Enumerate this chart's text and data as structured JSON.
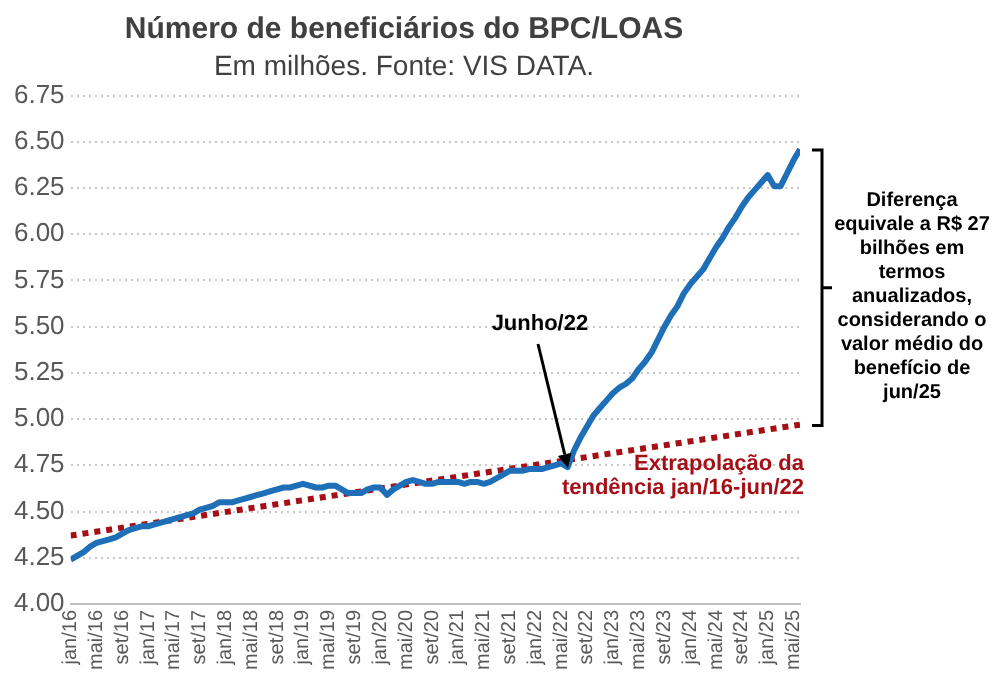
{
  "chart_data": {
    "type": "line",
    "title": "Número de beneficiários do BPC/LOAS",
    "subtitle": "Em milhões. Fonte: VIS DATA.",
    "x": [
      "2016-01",
      "2016-02",
      "2016-03",
      "2016-04",
      "2016-05",
      "2016-06",
      "2016-07",
      "2016-08",
      "2016-09",
      "2016-10",
      "2016-11",
      "2016-12",
      "2017-01",
      "2017-02",
      "2017-03",
      "2017-04",
      "2017-05",
      "2017-06",
      "2017-07",
      "2017-08",
      "2017-09",
      "2017-10",
      "2017-11",
      "2017-12",
      "2018-01",
      "2018-02",
      "2018-03",
      "2018-04",
      "2018-05",
      "2018-06",
      "2018-07",
      "2018-08",
      "2018-09",
      "2018-10",
      "2018-11",
      "2018-12",
      "2019-01",
      "2019-02",
      "2019-03",
      "2019-04",
      "2019-05",
      "2019-06",
      "2019-07",
      "2019-08",
      "2019-09",
      "2019-10",
      "2019-11",
      "2019-12",
      "2020-01",
      "2020-02",
      "2020-03",
      "2020-04",
      "2020-05",
      "2020-06",
      "2020-07",
      "2020-08",
      "2020-09",
      "2020-10",
      "2020-11",
      "2020-12",
      "2021-01",
      "2021-02",
      "2021-03",
      "2021-04",
      "2021-05",
      "2021-06",
      "2021-07",
      "2021-08",
      "2021-09",
      "2021-10",
      "2021-11",
      "2021-12",
      "2022-01",
      "2022-02",
      "2022-03",
      "2022-04",
      "2022-05",
      "2022-06",
      "2022-07",
      "2022-08",
      "2022-09",
      "2022-10",
      "2022-11",
      "2022-12",
      "2023-01",
      "2023-02",
      "2023-03",
      "2023-04",
      "2023-05",
      "2023-06",
      "2023-07",
      "2023-08",
      "2023-09",
      "2023-10",
      "2023-11",
      "2023-12",
      "2024-01",
      "2024-02",
      "2024-03",
      "2024-04",
      "2024-05",
      "2024-06",
      "2024-07",
      "2024-08",
      "2024-09",
      "2024-10",
      "2024-11",
      "2024-12",
      "2025-01",
      "2025-02",
      "2025-03",
      "2025-04",
      "2025-05",
      "2025-06"
    ],
    "series": [
      {
        "color": "#1f6fb8",
        "line_style": "solid",
        "values": [
          4.24,
          4.26,
          4.28,
          4.31,
          4.33,
          4.34,
          4.35,
          4.36,
          4.38,
          4.4,
          4.41,
          4.42,
          4.42,
          4.43,
          4.44,
          4.45,
          4.46,
          4.47,
          4.48,
          4.49,
          4.51,
          4.52,
          4.53,
          4.55,
          4.55,
          4.55,
          4.56,
          4.57,
          4.58,
          4.59,
          4.6,
          4.61,
          4.62,
          4.63,
          4.63,
          4.64,
          4.65,
          4.64,
          4.63,
          4.63,
          4.64,
          4.64,
          4.62,
          4.6,
          4.6,
          4.6,
          4.62,
          4.63,
          4.63,
          4.59,
          4.62,
          4.64,
          4.66,
          4.67,
          4.66,
          4.65,
          4.65,
          4.66,
          4.66,
          4.66,
          4.66,
          4.65,
          4.66,
          4.66,
          4.65,
          4.66,
          4.68,
          4.7,
          4.72,
          4.72,
          4.72,
          4.73,
          4.73,
          4.73,
          4.74,
          4.75,
          4.76,
          4.74,
          4.83,
          4.9,
          4.96,
          5.02,
          5.06,
          5.1,
          5.14,
          5.17,
          5.19,
          5.22,
          5.27,
          5.31,
          5.36,
          5.43,
          5.5,
          5.56,
          5.61,
          5.68,
          5.73,
          5.77,
          5.81,
          5.87,
          5.93,
          5.98,
          6.04,
          6.09,
          6.15,
          6.2,
          6.24,
          6.28,
          6.32,
          6.26,
          6.26,
          6.33,
          6.4,
          6.46
        ]
      },
      {
        "type": "line",
        "color": "#a50f15",
        "line_style": "dotted",
        "x": [
          "2016-01",
          "2025-06"
        ],
        "values": [
          4.37,
          4.97
        ]
      }
    ],
    "xlim": [
      "2016-01",
      "2025-06"
    ],
    "xticks": [
      {
        "value": "2016-01",
        "label": "jan/16"
      },
      {
        "value": "2016-05",
        "label": "mai/16"
      },
      {
        "value": "2016-09",
        "label": "set/16"
      },
      {
        "value": "2017-01",
        "label": "jan/17"
      },
      {
        "value": "2017-05",
        "label": "mai/17"
      },
      {
        "value": "2017-09",
        "label": "set/17"
      },
      {
        "value": "2018-01",
        "label": "jan/18"
      },
      {
        "value": "2018-05",
        "label": "mai/18"
      },
      {
        "value": "2018-09",
        "label": "set/18"
      },
      {
        "value": "2019-01",
        "label": "jan/19"
      },
      {
        "value": "2019-05",
        "label": "mai/19"
      },
      {
        "value": "2019-09",
        "label": "set/19"
      },
      {
        "value": "2020-01",
        "label": "jan/20"
      },
      {
        "value": "2020-05",
        "label": "mai/20"
      },
      {
        "value": "2020-09",
        "label": "set/20"
      },
      {
        "value": "2021-01",
        "label": "jan/21"
      },
      {
        "value": "2021-05",
        "label": "mai/21"
      },
      {
        "value": "2021-09",
        "label": "set/21"
      },
      {
        "value": "2022-01",
        "label": "jan/22"
      },
      {
        "value": "2022-05",
        "label": "mai/22"
      },
      {
        "value": "2022-09",
        "label": "set/22"
      },
      {
        "value": "2023-01",
        "label": "jan/23"
      },
      {
        "value": "2023-05",
        "label": "mai/23"
      },
      {
        "value": "2023-09",
        "label": "set/23"
      },
      {
        "value": "2024-01",
        "label": "jan/24"
      },
      {
        "value": "2024-05",
        "label": "mai/24"
      },
      {
        "value": "2024-09",
        "label": "set/24"
      },
      {
        "value": "2025-01",
        "label": "jan/25"
      },
      {
        "value": "2025-05",
        "label": "mai/25"
      }
    ],
    "ylim": [
      4,
      6.75
    ],
    "yticks": [
      {
        "value": 4,
        "label": "4.00"
      },
      {
        "value": 4.25,
        "label": "4.25"
      },
      {
        "value": 4.5,
        "label": "4.50"
      },
      {
        "value": 4.75,
        "label": "4.75"
      },
      {
        "value": 5,
        "label": "5.00"
      },
      {
        "value": 5.25,
        "label": "5.25"
      },
      {
        "value": 5.5,
        "label": "5.50"
      },
      {
        "value": 5.75,
        "label": "5.75"
      },
      {
        "value": 6,
        "label": "6.00"
      },
      {
        "value": 6.25,
        "label": "6.25"
      },
      {
        "value": 6.5,
        "label": "6.50"
      },
      {
        "value": 6.75,
        "label": "6.75"
      }
    ],
    "grid": "y",
    "marker": "none",
    "annotations": [
      {
        "text": "Junho/22",
        "x": "2022-06",
        "y": 4.74
      },
      "Extrapolação da tendência jan/16-jun/22",
      "Diferença equivale a R$ 27 bilhões em termos anualizados, considerando o valor médio do benefício de jun/25"
    ]
  }
}
